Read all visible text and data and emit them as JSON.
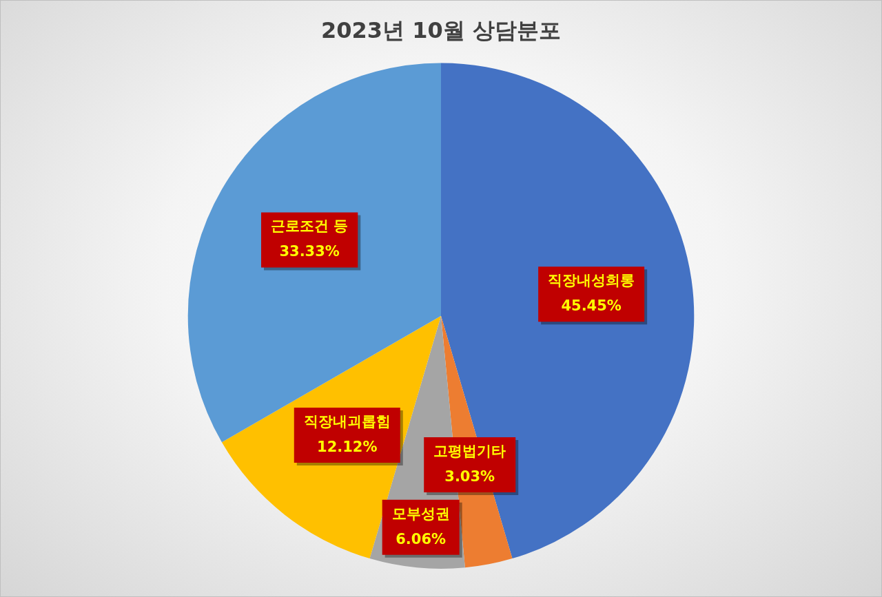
{
  "chart_data": {
    "type": "pie",
    "title": "2023년 10월 상담분포",
    "categories": [
      "직장내성희롱",
      "고평법기타",
      "모부성권",
      "직장내괴롭힘",
      "근로조건 등"
    ],
    "values": [
      45.45,
      3.03,
      6.06,
      12.12,
      33.33
    ],
    "colors": [
      "#4472c4",
      "#ed7d31",
      "#a5a5a5",
      "#ffc000",
      "#5b9bd5"
    ],
    "value_labels": [
      "45.45%",
      "3.03%",
      "6.06%",
      "12.12%",
      "33.33%"
    ]
  }
}
